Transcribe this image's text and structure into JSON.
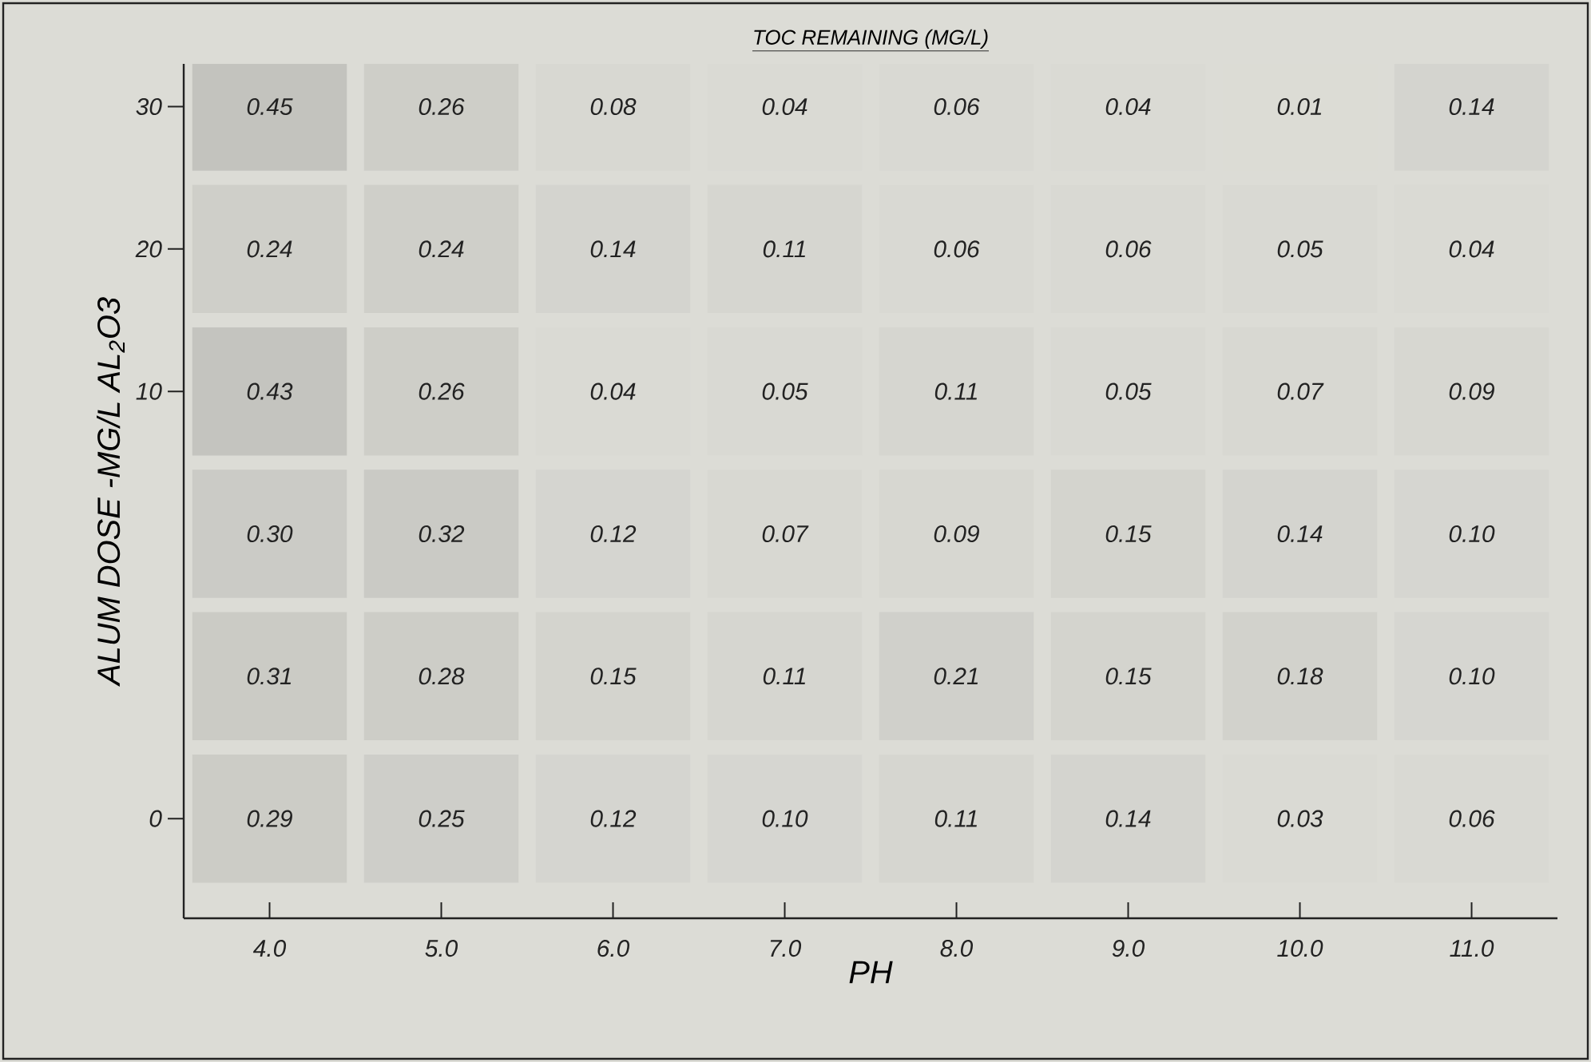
{
  "chart_data": {
    "type": "heatmap",
    "title": "TOC REMAINING (MG/L)",
    "xlabel": "PH",
    "ylabel": "ALUM DOSE -MG/L AL$_{2}$O3",
    "categories": [
      "4.0",
      "5.0",
      "6.0",
      "7.0",
      "8.0",
      "9.0",
      "10.0",
      "11.0"
    ],
    "y_categories": [
      "30",
      "20",
      "10",
      null,
      null,
      "0"
    ],
    "cells": [
      [
        0.45,
        0.26,
        0.08,
        0.04,
        0.06,
        0.04,
        0.01,
        0.14
      ],
      [
        0.24,
        0.24,
        0.14,
        0.11,
        0.06,
        0.06,
        0.05,
        0.04
      ],
      [
        0.43,
        0.26,
        0.04,
        0.05,
        0.11,
        0.05,
        0.07,
        0.09
      ],
      [
        0.3,
        0.32,
        0.12,
        0.07,
        0.09,
        0.15,
        0.14,
        0.1
      ],
      [
        0.31,
        0.28,
        0.15,
        0.11,
        0.21,
        0.15,
        0.18,
        0.1
      ],
      [
        0.29,
        0.25,
        0.12,
        0.1,
        0.11,
        0.14,
        0.03,
        0.06
      ]
    ],
    "cell_labels": [
      [
        "0.45",
        "0.26",
        "0.08",
        "0.04",
        "0.06",
        "0.04",
        "0.01",
        "0.14"
      ],
      [
        "0.24",
        "0.24",
        "0.14",
        "0.11",
        "0.06",
        "0.06",
        "0.05",
        "0.04"
      ],
      [
        "0.43",
        "0.26",
        "0.04",
        "0.05",
        "0.11",
        "0.05",
        "0.07",
        "0.09"
      ],
      [
        "0.30",
        "0.32",
        "0.12",
        "0.07",
        "0.09",
        "0.15",
        "0.14",
        "0.10"
      ],
      [
        "0.31",
        "0.28",
        "0.15",
        "0.11",
        "0.21",
        "0.15",
        "0.18",
        "0.10"
      ],
      [
        "0.29",
        "0.25",
        "0.12",
        "0.10",
        "0.11",
        "0.14",
        "0.03",
        "0.06"
      ]
    ]
  }
}
